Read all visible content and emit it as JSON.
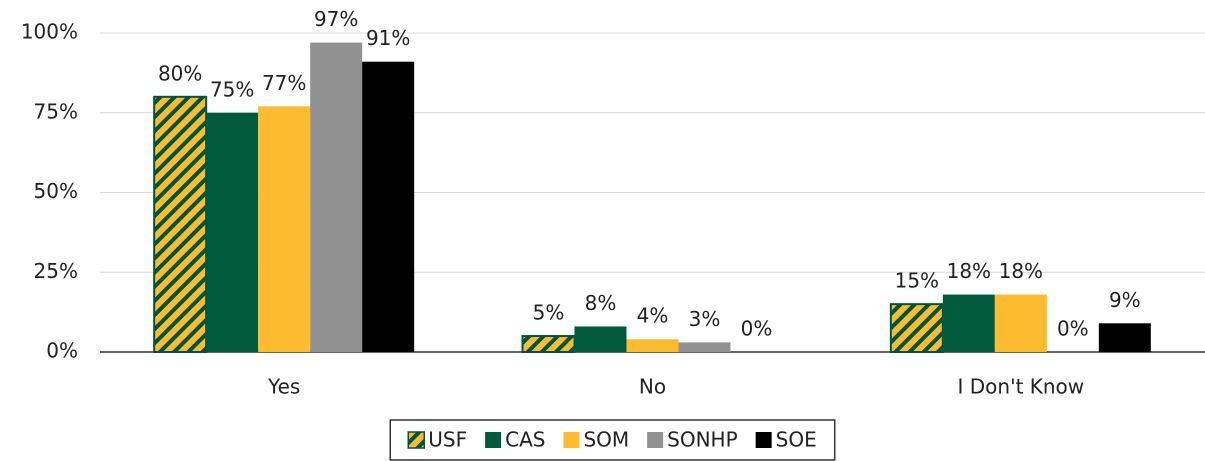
{
  "chart_data": {
    "type": "bar",
    "categories": [
      "Yes",
      "No",
      "I Don't Know"
    ],
    "series": [
      {
        "name": "USF",
        "color": "#fdbb30",
        "pattern": "hatch",
        "pattern_color": "#00543c",
        "values": [
          80,
          5,
          15
        ],
        "value_labels": [
          "80%",
          "5%",
          "15%"
        ]
      },
      {
        "name": "CAS",
        "color": "#005a3c",
        "values": [
          75,
          8,
          18
        ],
        "value_labels": [
          "75%",
          "8%",
          "18%"
        ]
      },
      {
        "name": "SOM",
        "color": "#fdbb30",
        "values": [
          77,
          4,
          18
        ],
        "value_labels": [
          "77%",
          "4%",
          "18%"
        ]
      },
      {
        "name": "SONHP",
        "color": "#919191",
        "values": [
          97,
          3,
          0
        ],
        "value_labels": [
          "97%",
          "3%",
          "0%"
        ]
      },
      {
        "name": "SOE",
        "color": "#000000",
        "values": [
          91,
          0,
          9
        ],
        "value_labels": [
          "91%",
          "0%",
          "9%"
        ]
      }
    ],
    "ylim": [
      0,
      100
    ],
    "yticks": [
      {
        "value": 0,
        "label": "0%"
      },
      {
        "value": 25,
        "label": "25%"
      },
      {
        "value": 50,
        "label": "50%"
      },
      {
        "value": 75,
        "label": "75%"
      },
      {
        "value": 100,
        "label": "100%"
      }
    ],
    "grid": true,
    "legend": "bottom"
  }
}
